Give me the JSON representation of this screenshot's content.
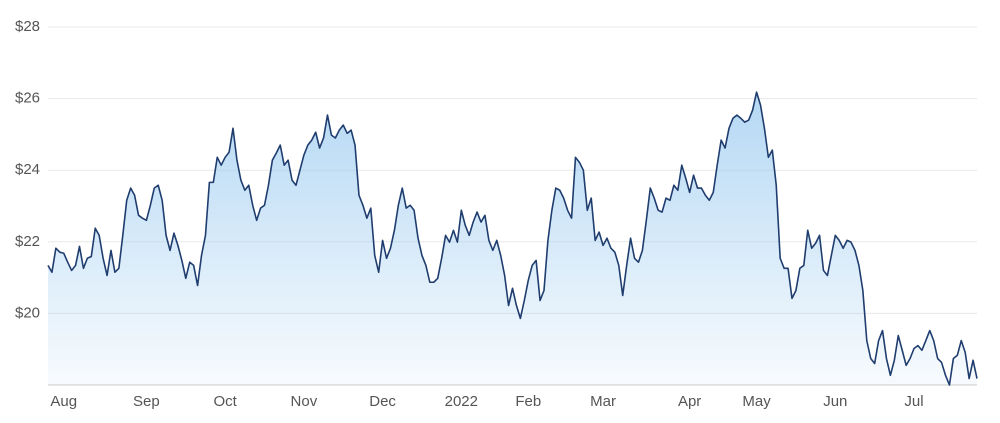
{
  "chart_data": {
    "type": "area",
    "color": "#1f3d6e",
    "fill_color": "#9ccbf0",
    "grid": true,
    "ylim": [
      18,
      28
    ],
    "yticks": [
      {
        "value": 20,
        "label": "$20"
      },
      {
        "value": 22,
        "label": "$22"
      },
      {
        "value": 24,
        "label": "$24"
      },
      {
        "value": 26,
        "label": "$26"
      },
      {
        "value": 28,
        "label": "$28"
      }
    ],
    "categories": [
      null,
      null,
      null,
      null,
      "Aug",
      null,
      null,
      null,
      null,
      null,
      null,
      null,
      null,
      null,
      null,
      null,
      null,
      null,
      null,
      null,
      null,
      null,
      null,
      null,
      null,
      "Sep",
      null,
      null,
      null,
      null,
      null,
      null,
      null,
      null,
      null,
      null,
      null,
      null,
      null,
      null,
      null,
      null,
      null,
      null,
      null,
      "Oct",
      null,
      null,
      null,
      null,
      null,
      null,
      null,
      null,
      null,
      null,
      null,
      null,
      null,
      null,
      null,
      null,
      null,
      null,
      null,
      "Nov",
      null,
      null,
      null,
      null,
      null,
      null,
      null,
      null,
      null,
      null,
      null,
      null,
      null,
      null,
      null,
      null,
      null,
      null,
      null,
      "Dec",
      null,
      null,
      null,
      null,
      null,
      null,
      null,
      null,
      null,
      null,
      null,
      null,
      null,
      null,
      null,
      null,
      null,
      null,
      null,
      "2022",
      null,
      null,
      null,
      null,
      null,
      null,
      null,
      null,
      null,
      null,
      null,
      null,
      null,
      null,
      null,
      null,
      "Feb",
      null,
      null,
      null,
      null,
      null,
      null,
      null,
      null,
      null,
      null,
      null,
      null,
      null,
      null,
      null,
      null,
      null,
      null,
      "Mar",
      null,
      null,
      null,
      null,
      null,
      null,
      null,
      null,
      null,
      null,
      null,
      null,
      null,
      null,
      null,
      null,
      null,
      null,
      null,
      null,
      null,
      "Apr",
      null,
      null,
      null,
      null,
      null,
      null,
      null,
      null,
      null,
      null,
      null,
      null,
      null,
      null,
      null,
      null,
      "May",
      null,
      null,
      null,
      null,
      null,
      null,
      null,
      null,
      null,
      null,
      null,
      null,
      null,
      null,
      null,
      null,
      null,
      null,
      null,
      "Jun",
      null,
      null,
      null,
      null,
      null,
      null,
      null,
      null,
      null,
      null,
      null,
      null,
      null,
      null,
      null,
      null,
      null,
      null,
      null,
      "Jul",
      null,
      null,
      null,
      null,
      null,
      null,
      null,
      null,
      null,
      null,
      null,
      null,
      null,
      null,
      null,
      null
    ],
    "values": [
      21.34,
      21.15,
      21.82,
      21.71,
      21.68,
      21.43,
      21.2,
      21.34,
      21.87,
      21.26,
      21.54,
      21.59,
      22.38,
      22.18,
      21.54,
      21.06,
      21.76,
      21.15,
      21.26,
      22.18,
      23.16,
      23.5,
      23.3,
      22.74,
      22.66,
      22.6,
      23.02,
      23.5,
      23.58,
      23.16,
      22.18,
      21.76,
      22.24,
      21.9,
      21.48,
      20.98,
      21.43,
      21.34,
      20.78,
      21.62,
      22.18,
      23.66,
      23.66,
      24.36,
      24.14,
      24.36,
      24.5,
      25.17,
      24.28,
      23.72,
      23.44,
      23.58,
      23.02,
      22.6,
      22.94,
      23.02,
      23.58,
      24.28,
      24.48,
      24.7,
      24.14,
      24.28,
      23.72,
      23.58,
      24.0,
      24.42,
      24.7,
      24.84,
      25.06,
      24.62,
      24.9,
      25.54,
      24.98,
      24.9,
      25.12,
      25.26,
      25.03,
      25.12,
      24.7,
      23.3,
      23.02,
      22.66,
      22.94,
      21.62,
      21.15,
      22.04,
      21.54,
      21.82,
      22.32,
      23.02,
      23.5,
      22.94,
      23.02,
      22.88,
      22.1,
      21.62,
      21.34,
      20.87,
      20.87,
      20.98,
      21.54,
      22.18,
      21.99,
      22.32,
      21.99,
      22.88,
      22.46,
      22.18,
      22.55,
      22.83,
      22.55,
      22.74,
      22.04,
      21.76,
      22.04,
      21.62,
      21.06,
      20.22,
      20.7,
      20.22,
      19.86,
      20.36,
      20.92,
      21.34,
      21.48,
      20.36,
      20.64,
      22.04,
      22.88,
      23.5,
      23.44,
      23.22,
      22.88,
      22.66,
      24.36,
      24.22,
      24.0,
      22.88,
      23.22,
      22.04,
      22.27,
      21.9,
      22.1,
      21.82,
      21.71,
      21.34,
      20.5,
      21.34,
      22.1,
      21.54,
      21.43,
      21.76,
      22.6,
      23.5,
      23.22,
      22.88,
      22.83,
      23.22,
      23.16,
      23.58,
      23.44,
      24.14,
      23.78,
      23.38,
      23.86,
      23.5,
      23.5,
      23.3,
      23.16,
      23.38,
      24.14,
      24.84,
      24.62,
      25.17,
      25.45,
      25.54,
      25.45,
      25.34,
      25.4,
      25.68,
      26.18,
      25.82,
      25.17,
      24.36,
      24.56,
      23.58,
      21.54,
      21.26,
      21.26,
      20.42,
      20.64,
      21.26,
      21.34,
      22.32,
      21.82,
      21.96,
      22.18,
      21.2,
      21.06,
      21.62,
      22.18,
      22.04,
      21.82,
      22.04,
      21.99,
      21.76,
      21.34,
      20.64,
      19.24,
      18.74,
      18.6,
      19.24,
      19.52,
      18.74,
      18.27,
      18.69,
      19.38,
      18.97,
      18.55,
      18.74,
      19.02,
      19.1,
      18.97,
      19.24,
      19.52,
      19.24,
      18.74,
      18.63,
      18.27,
      18.0,
      18.74,
      18.83,
      19.24,
      18.91,
      18.18,
      18.69,
      18.18
    ]
  }
}
